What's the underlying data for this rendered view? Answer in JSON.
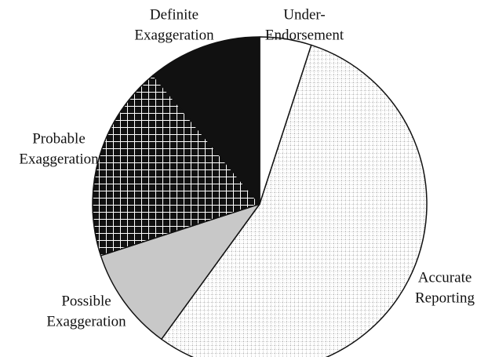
{
  "chart_data": {
    "type": "pie",
    "categories": [
      [
        "Under-",
        "Endorsement"
      ],
      [
        "Accurate",
        "Reporting"
      ],
      [
        "Possible",
        "Exaggeration"
      ],
      [
        "Probable",
        "Exaggeration"
      ],
      [
        "Definite",
        "Exaggeration"
      ]
    ],
    "values": [
      5,
      55,
      10,
      19,
      11
    ],
    "colors": [
      "#ffffff",
      "url(#dots)",
      "#c8c8c8",
      "url(#grid)",
      "#111111"
    ]
  }
}
